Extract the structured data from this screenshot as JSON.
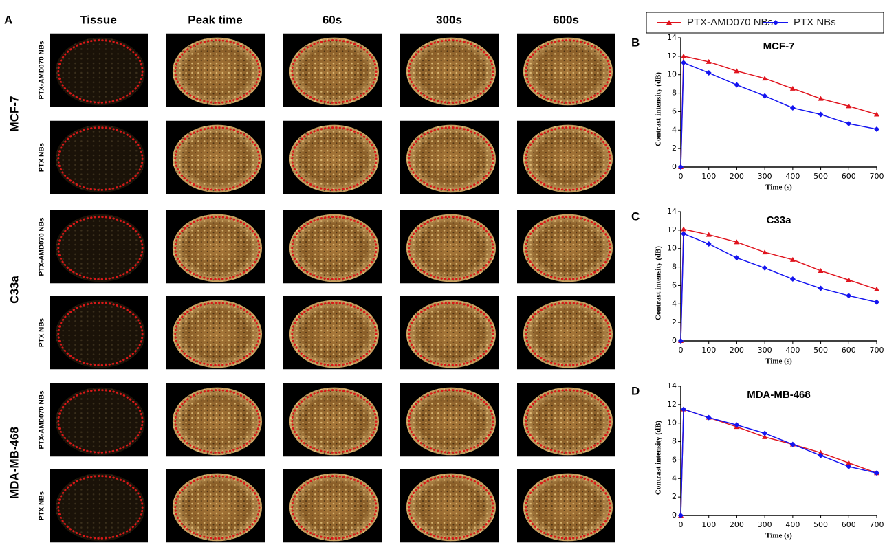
{
  "panel_a": {
    "label": "A",
    "columns": [
      "Tissue",
      "Peak time",
      "60s",
      "300s",
      "600s"
    ],
    "groups": [
      {
        "name": "MCF-7",
        "rows": [
          "PTX-AMD070 NBs",
          "PTX NBs"
        ]
      },
      {
        "name": "C33a",
        "rows": [
          "PTX-AMD070 NBs",
          "PTX NBs"
        ]
      },
      {
        "name": "MDA-MB-468",
        "rows": [
          "PTX-AMD070 NBs",
          "PTX NBs"
        ]
      }
    ]
  },
  "chart_data": [
    {
      "type": "line",
      "panel": "B",
      "title": "MCF-7",
      "x_label": "Time (s)",
      "y_label": "Contrast intensity (dB)",
      "x": [
        0,
        10,
        100,
        200,
        300,
        400,
        500,
        600,
        700
      ],
      "xlim": [
        0,
        700
      ],
      "xticks": [
        0,
        100,
        200,
        300,
        400,
        500,
        600,
        700
      ],
      "ylim": [
        0,
        14
      ],
      "yticks": [
        0,
        2,
        4,
        6,
        8,
        10,
        12,
        14
      ],
      "series": [
        {
          "name": "PTX-AMD070 NBs",
          "color": "#e0141e",
          "values": [
            0,
            12.0,
            11.4,
            10.4,
            9.6,
            8.5,
            7.4,
            6.6,
            5.7
          ]
        },
        {
          "name": "PTX NBs",
          "color": "#1414f0",
          "values": [
            0,
            11.3,
            10.2,
            8.9,
            7.7,
            6.4,
            5.7,
            4.7,
            4.1
          ]
        }
      ]
    },
    {
      "type": "line",
      "panel": "C",
      "title": "C33a",
      "x_label": "Time (s)",
      "y_label": "Contrast intensity (dB)",
      "x": [
        0,
        10,
        100,
        200,
        300,
        400,
        500,
        600,
        700
      ],
      "xlim": [
        0,
        700
      ],
      "xticks": [
        0,
        100,
        200,
        300,
        400,
        500,
        600,
        700
      ],
      "ylim": [
        0,
        14
      ],
      "yticks": [
        0,
        2,
        4,
        6,
        8,
        10,
        12,
        14
      ],
      "series": [
        {
          "name": "PTX-AMD070 NBs",
          "color": "#e0141e",
          "values": [
            0,
            12.1,
            11.5,
            10.7,
            9.6,
            8.8,
            7.6,
            6.6,
            5.6
          ]
        },
        {
          "name": "PTX NBs",
          "color": "#1414f0",
          "values": [
            0,
            11.6,
            10.5,
            9.0,
            7.9,
            6.7,
            5.7,
            4.9,
            4.2
          ]
        }
      ]
    },
    {
      "type": "line",
      "panel": "D",
      "title": "MDA-MB-468",
      "x_label": "Time (s)",
      "y_label": "Contrast intensity (dB)",
      "x": [
        0,
        10,
        100,
        200,
        300,
        400,
        500,
        600,
        700
      ],
      "xlim": [
        0,
        700
      ],
      "xticks": [
        0,
        100,
        200,
        300,
        400,
        500,
        600,
        700
      ],
      "ylim": [
        0,
        14
      ],
      "yticks": [
        0,
        2,
        4,
        6,
        8,
        10,
        12,
        14
      ],
      "series": [
        {
          "name": "PTX-AMD070 NBs",
          "color": "#e0141e",
          "values": [
            0,
            11.5,
            10.6,
            9.6,
            8.5,
            7.7,
            6.8,
            5.7,
            4.6
          ]
        },
        {
          "name": "PTX NBs",
          "color": "#1414f0",
          "values": [
            0,
            11.5,
            10.6,
            9.8,
            8.9,
            7.7,
            6.5,
            5.3,
            4.6
          ]
        }
      ]
    }
  ]
}
